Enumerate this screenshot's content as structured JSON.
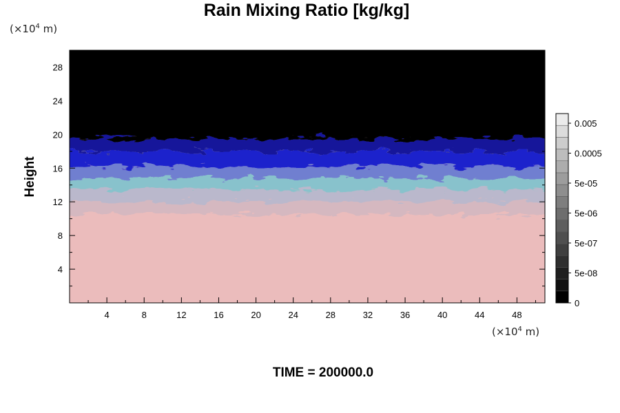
{
  "chart_data": {
    "type": "heatmap",
    "title": "Rain Mixing Ratio [kg/kg]",
    "ylabel": "Height",
    "xlabel": "",
    "x_unit": {
      "prefix": "(×10",
      "exp": "4",
      "suffix": " m)"
    },
    "y_unit": {
      "prefix": "(×10",
      "exp": "4",
      "suffix": " m)"
    },
    "xlim": [
      0,
      51
    ],
    "ylim": [
      0,
      30
    ],
    "x_ticks": [
      4,
      8,
      12,
      16,
      20,
      24,
      28,
      32,
      36,
      40,
      44,
      48
    ],
    "y_ticks": [
      4,
      8,
      12,
      16,
      20,
      24,
      28
    ],
    "x_minor": [
      2,
      6,
      10,
      14,
      18,
      22,
      26,
      30,
      34,
      38,
      42,
      46,
      50
    ],
    "y_minor": [
      2,
      6,
      10,
      14,
      18,
      22,
      26
    ],
    "field_bands": [
      {
        "y_from": 0,
        "y_to": 10.5,
        "color": "#ebbcbc"
      },
      {
        "y_from": 10.5,
        "y_to": 12.0,
        "color": "#d5b8c0"
      },
      {
        "y_from": 12.0,
        "y_to": 13.5,
        "color": "#bab8cc"
      },
      {
        "y_from": 13.5,
        "y_to": 14.8,
        "color": "#88c2cc"
      },
      {
        "y_from": 14.8,
        "y_to": 16.2,
        "color": "#6f7fd0"
      },
      {
        "y_from": 16.2,
        "y_to": 18.0,
        "color": "#1f22cc"
      },
      {
        "y_from": 18.0,
        "y_to": 19.5,
        "color": "#12169a"
      },
      {
        "y_from": 19.5,
        "y_to": 30,
        "color": "#000000"
      }
    ],
    "colorbar": {
      "labels": [
        "0.005",
        "0.0005",
        "5e-05",
        "5e-06",
        "5e-07",
        "5e-08",
        "0"
      ],
      "level_count": 16
    },
    "time_label": "TIME = 200000.0"
  }
}
